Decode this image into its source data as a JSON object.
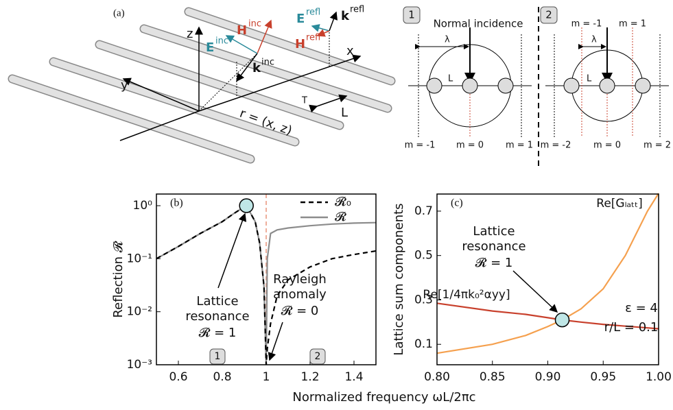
{
  "panel_a": {
    "label": "(a)",
    "z": "z",
    "y": "y",
    "x": "x",
    "E_inc": "E",
    "E_inc_sup": "inc",
    "H_inc": "H",
    "H_inc_sup": "inc",
    "k_inc": "k",
    "k_inc_sup": "inc",
    "E_refl": "E",
    "E_refl_sup": "refl",
    "k_refl": "k",
    "k_refl_sup": "refl",
    "H_refl": "H",
    "H_refl_sup": "refl",
    "r": "r = (x, z)",
    "r_sup": "T",
    "L": "L"
  },
  "insets": {
    "left": {
      "number": "1",
      "title": "Normal incidence",
      "lambda": "λ",
      "L": "L",
      "m_left": "m = -1",
      "m_center": "m = 0",
      "m_right": "m = 1"
    },
    "right": {
      "number": "2",
      "m_top_left": "m = -1",
      "m_top_right": "m = 1",
      "lambda": "λ",
      "L": "L",
      "m_left": "m = -2",
      "m_center": "m = 0",
      "m_right": "m = 2"
    }
  },
  "x_label": "Normalized frequency ωL/2πc",
  "chart_data": [
    {
      "type": "line",
      "label": "(b)",
      "y_label": "Reflection 𝓡",
      "log_y": true,
      "legend": "upper right",
      "x": [
        0.5,
        0.6,
        0.7,
        0.8,
        0.85,
        0.9,
        0.91,
        0.95,
        0.97,
        0.99,
        1.0,
        1.005,
        1.02,
        1.05,
        1.1,
        1.2,
        1.3,
        1.4,
        1.5
      ],
      "series": [
        {
          "name": "𝓡",
          "color": "#8c8c8c",
          "dash": false,
          "values": [
            0.1,
            0.17,
            0.3,
            0.5,
            0.7,
            0.95,
            1.0,
            0.5,
            0.2,
            0.03,
            0.001,
            0.1,
            0.3,
            0.35,
            0.38,
            0.42,
            0.45,
            0.47,
            0.48
          ]
        },
        {
          "name": "𝓡₀",
          "color": "#000000",
          "dash": true,
          "values": [
            0.1,
            0.17,
            0.3,
            0.5,
            0.7,
            0.95,
            1.0,
            0.5,
            0.2,
            0.03,
            0.001,
            0.002,
            0.006,
            0.02,
            0.04,
            0.07,
            0.1,
            0.12,
            0.14
          ]
        }
      ],
      "xlim": [
        0.5,
        1.5
      ],
      "xticks": [
        0.6,
        0.8,
        1.0,
        1.2,
        1.4
      ],
      "ylim": [
        0.001,
        1.66
      ],
      "yticks": [
        {
          "value": 0.001,
          "label": "10⁻³"
        },
        {
          "value": 0.01,
          "label": "10⁻²"
        },
        {
          "value": 0.1,
          "label": "10⁻¹"
        },
        {
          "value": 1,
          "label": "10⁰"
        }
      ],
      "vline": 1.0,
      "vline_color": "#e8937a",
      "annotations": [
        "Lattice",
        "resonance",
        "𝓡 = 1",
        "Rayleigh",
        "anomaly",
        "𝓡 = 0",
        "1",
        "2"
      ]
    },
    {
      "type": "line",
      "label": "(c)",
      "y_label": "Lattice sum components",
      "log_y": false,
      "x": [
        0.8,
        0.85,
        0.88,
        0.9,
        0.913,
        0.93,
        0.95,
        0.97,
        0.99,
        1.0
      ],
      "series": [
        {
          "name": "Re[Gₗₐₜₜ]",
          "color": "#f5a04e",
          "dash": false,
          "values": [
            0.06,
            0.1,
            0.14,
            0.18,
            0.21,
            0.26,
            0.35,
            0.5,
            0.7,
            0.78
          ]
        },
        {
          "name": "Re[1/4πk₀²αyy]",
          "color": "#c8402c",
          "dash": false,
          "values": [
            0.285,
            0.25,
            0.235,
            0.22,
            0.21,
            0.2,
            0.19,
            0.182,
            0.174,
            0.17
          ]
        }
      ],
      "xlim": [
        0.8,
        1.0
      ],
      "xticks": [
        {
          "value": 0.8,
          "label": "0.80"
        },
        0.85,
        {
          "value": 0.9,
          "label": "0.90"
        },
        0.95,
        {
          "value": 1.0,
          "label": "1.00"
        }
      ],
      "ylim": [
        0.008,
        0.777
      ],
      "yticks": [
        0.1,
        0.3,
        0.5,
        0.7
      ],
      "annotations": [
        "Lattice",
        "resonance",
        "𝓡 = 1",
        "ε = 4",
        "r/L = 0.1"
      ]
    }
  ]
}
